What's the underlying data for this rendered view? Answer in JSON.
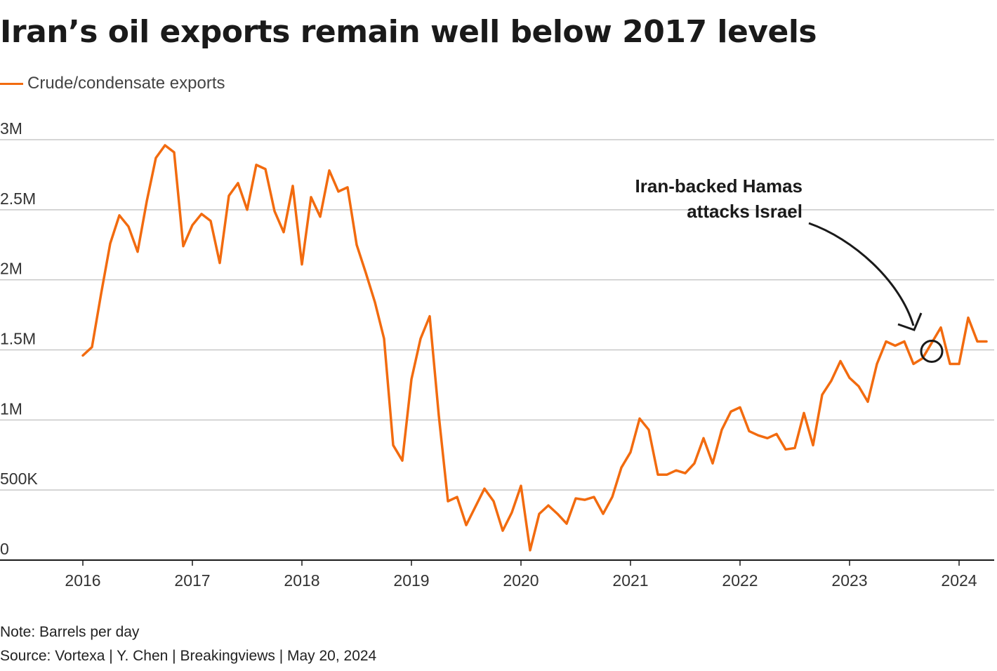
{
  "title": "Iran’s oil exports remain well below 2017 levels",
  "legend": {
    "label": "Crude/condensate exports",
    "color": "#f26b0f"
  },
  "note": "Note: Barrels per day",
  "source": "Source: Vortexa | Y. Chen | Breakingviews | May 20, 2024",
  "chart_data": {
    "type": "line",
    "title": "Iran’s oil exports remain well below 2017 levels",
    "xlabel": "",
    "ylabel": "",
    "ylim": [
      0,
      3000000
    ],
    "y_ticks": [
      {
        "value": 0,
        "label": "0"
      },
      {
        "value": 500000,
        "label": "500K"
      },
      {
        "value": 1000000,
        "label": "1M"
      },
      {
        "value": 1500000,
        "label": "1.5M"
      },
      {
        "value": 2000000,
        "label": "2M"
      },
      {
        "value": 2500000,
        "label": "2.5M"
      },
      {
        "value": 3000000,
        "label": "3M"
      }
    ],
    "x_range": [
      2015.7,
      2024.4
    ],
    "x_ticks": [
      {
        "value": 2016,
        "label": "2016"
      },
      {
        "value": 2017,
        "label": "2017"
      },
      {
        "value": 2018,
        "label": "2018"
      },
      {
        "value": 2019,
        "label": "2019"
      },
      {
        "value": 2020,
        "label": "2020"
      },
      {
        "value": 2021,
        "label": "2021"
      },
      {
        "value": 2022,
        "label": "2022"
      },
      {
        "value": 2023,
        "label": "2023"
      },
      {
        "value": 2024,
        "label": "2024"
      }
    ],
    "series": [
      {
        "name": "Crude/condensate exports",
        "color": "#f26b0f",
        "start": 2016.0,
        "step_months": 1,
        "values": [
          1460000,
          1520000,
          1900000,
          2260000,
          2460000,
          2380000,
          2200000,
          2560000,
          2870000,
          2960000,
          2910000,
          2240000,
          2390000,
          2470000,
          2420000,
          2120000,
          2600000,
          2690000,
          2500000,
          2820000,
          2790000,
          2490000,
          2340000,
          2670000,
          2110000,
          2590000,
          2450000,
          2780000,
          2630000,
          2660000,
          2250000,
          2050000,
          1840000,
          1580000,
          820000,
          710000,
          1290000,
          1580000,
          1740000,
          1030000,
          420000,
          450000,
          250000,
          380000,
          510000,
          420000,
          210000,
          340000,
          530000,
          70000,
          330000,
          390000,
          330000,
          260000,
          440000,
          430000,
          450000,
          330000,
          450000,
          660000,
          770000,
          1010000,
          930000,
          610000,
          610000,
          640000,
          620000,
          690000,
          870000,
          690000,
          930000,
          1060000,
          1090000,
          920000,
          890000,
          870000,
          900000,
          790000,
          800000,
          1050000,
          820000,
          1180000,
          1280000,
          1420000,
          1300000,
          1240000,
          1130000,
          1400000,
          1560000,
          1530000,
          1560000,
          1400000,
          1440000,
          1550000,
          1660000,
          1400000,
          1400000,
          1730000,
          1560000,
          1560000
        ]
      }
    ],
    "annotation": {
      "lines": [
        "Iran-backed Hamas",
        "attacks Israel"
      ],
      "target_x": 2023.75,
      "target_y": 1490000
    }
  }
}
